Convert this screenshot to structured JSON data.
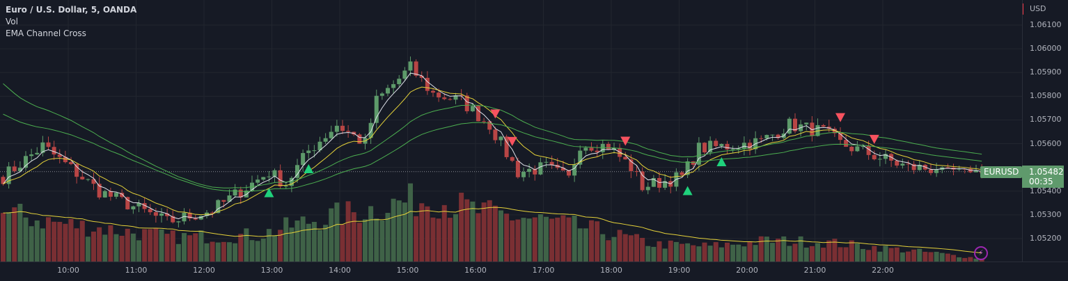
{
  "legend": {
    "title": "Euro / U.S. Dollar, 5, OANDA",
    "vol": "Vol",
    "indicator": "EMA Channel Cross"
  },
  "axis": {
    "currency": "USD",
    "price_labels": [
      "1.06100",
      "1.06000",
      "1.05900",
      "1.05800",
      "1.05700",
      "1.05600",
      "1.05400",
      "1.05300",
      "1.05200"
    ],
    "time_labels": [
      "10:00",
      "11:00",
      "12:00",
      "13:00",
      "14:00",
      "15:00",
      "16:00",
      "17:00",
      "18:00",
      "19:00",
      "20:00",
      "21:00",
      "22:00"
    ]
  },
  "current": {
    "symbol": "EURUSD",
    "price": "1.05482",
    "countdown": "00:35",
    "color": "#5f9a6c"
  },
  "colors": {
    "up": "#5d9a6a",
    "down": "#b84545",
    "vol_up": "#3f6247",
    "vol_down": "#7a2f33",
    "ema_fast": "#e0e3eb",
    "ema_mid": "#e5d23a",
    "ema_chan": "#4caf50",
    "buy": "#1fd17c",
    "sell": "#f7525f"
  },
  "price_path": [
    [
      0,
      1.0546
    ],
    [
      7,
      1.0559
    ],
    [
      17,
      1.054
    ],
    [
      29,
      1.0527
    ],
    [
      37,
      1.0532
    ],
    [
      47,
      1.0548
    ],
    [
      50,
      1.0543
    ],
    [
      54,
      1.0557
    ],
    [
      59,
      1.0568
    ],
    [
      64,
      1.056
    ],
    [
      66,
      1.0578
    ],
    [
      72,
      1.0592
    ],
    [
      76,
      1.0581
    ],
    [
      81,
      1.0578
    ],
    [
      86,
      1.0568
    ],
    [
      91,
      1.0548
    ],
    [
      96,
      1.055
    ],
    [
      100,
      1.0545
    ],
    [
      102,
      1.056
    ],
    [
      107,
      1.0559
    ],
    [
      111,
      1.055
    ],
    [
      113,
      1.0542
    ],
    [
      120,
      1.0546
    ],
    [
      123,
      1.0558
    ],
    [
      128,
      1.0559
    ],
    [
      134,
      1.0561
    ],
    [
      139,
      1.0568
    ],
    [
      145,
      1.0565
    ],
    [
      148,
      1.056
    ],
    [
      154,
      1.0555
    ],
    [
      160,
      1.055
    ],
    [
      173,
      1.05482
    ]
  ],
  "volume_path": [
    [
      0,
      70
    ],
    [
      10,
      55
    ],
    [
      20,
      45
    ],
    [
      30,
      35
    ],
    [
      45,
      38
    ],
    [
      55,
      60
    ],
    [
      65,
      75
    ],
    [
      70,
      85
    ],
    [
      76,
      90
    ],
    [
      85,
      70
    ],
    [
      95,
      60
    ],
    [
      105,
      45
    ],
    [
      115,
      25
    ],
    [
      125,
      22
    ],
    [
      135,
      30
    ],
    [
      145,
      28
    ],
    [
      155,
      20
    ],
    [
      165,
      12
    ],
    [
      173,
      4
    ]
  ],
  "signals": {
    "buy": [
      47,
      54,
      121,
      127
    ],
    "sell": [
      87,
      90,
      110,
      148,
      154
    ]
  },
  "bolt_icon": "lightning-icon"
}
